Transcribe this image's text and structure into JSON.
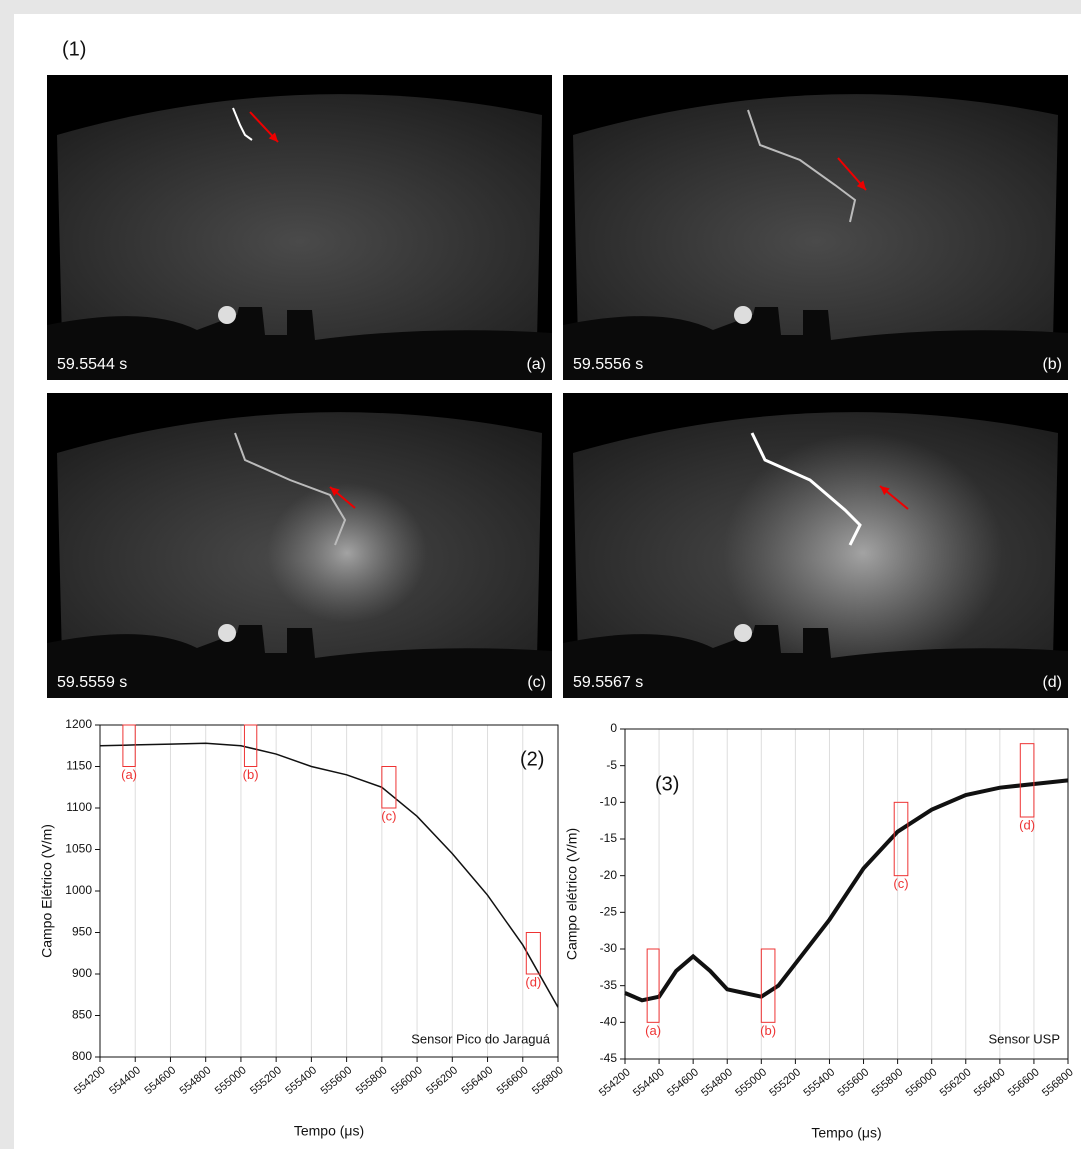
{
  "panel_label": "(1)",
  "photos": [
    {
      "time": "59.5544 s",
      "label": "(a)"
    },
    {
      "time": "59.5556 s",
      "label": "(b)"
    },
    {
      "time": "59.5559 s",
      "label": "(c)"
    },
    {
      "time": "59.5567 s",
      "label": "(d)"
    }
  ],
  "chart_data": [
    {
      "type": "line",
      "title": "(2)",
      "note": "Sensor Pico do Jaraguá",
      "xlabel": "Tempo (μs)",
      "ylabel": "Campo Elétrico (V/m)",
      "x": [
        554200,
        554400,
        554600,
        554800,
        555000,
        555200,
        555400,
        555600,
        555800,
        556000,
        556200,
        556400,
        556600,
        556800
      ],
      "series": [
        {
          "name": "Sensor Pico do Jaraguá",
          "color": "#111111",
          "values": [
            1175,
            1176,
            1177,
            1178,
            1175,
            1165,
            1150,
            1140,
            1125,
            1090,
            1045,
            995,
            935,
            860
          ]
        }
      ],
      "xlim": [
        554200,
        556800
      ],
      "xticks": [
        554200,
        554400,
        554600,
        554800,
        555000,
        555200,
        555400,
        555600,
        555800,
        556000,
        556200,
        556400,
        556600,
        556800
      ],
      "ylim": [
        800,
        1200
      ],
      "yticks": [
        800,
        850,
        900,
        950,
        1000,
        1050,
        1100,
        1150,
        1200
      ],
      "grid": true,
      "annotations": [
        {
          "label": "(a)",
          "x": [
            554330,
            554400
          ],
          "y": [
            1150,
            1200
          ]
        },
        {
          "label": "(b)",
          "x": [
            555020,
            555090
          ],
          "y": [
            1150,
            1200
          ]
        },
        {
          "label": "(c)",
          "x": [
            555800,
            555880
          ],
          "y": [
            1100,
            1150
          ]
        },
        {
          "label": "(d)",
          "x": [
            556620,
            556700
          ],
          "y": [
            900,
            950
          ]
        }
      ]
    },
    {
      "type": "line",
      "title": "(3)",
      "note": "Sensor USP",
      "xlabel": "Tempo (μs)",
      "ylabel": "Campo elétrico (V/m)",
      "x": [
        554200,
        554300,
        554400,
        554500,
        554600,
        554700,
        554800,
        554900,
        555000,
        555100,
        555200,
        555400,
        555600,
        555800,
        556000,
        556200,
        556400,
        556600,
        556800
      ],
      "series": [
        {
          "name": "Sensor USP",
          "color": "#111111",
          "values": [
            -36,
            -37,
            -36.5,
            -33,
            -31,
            -33,
            -35.5,
            -36,
            -36.5,
            -35,
            -32,
            -26,
            -19,
            -14,
            -11,
            -9,
            -8,
            -7.5,
            -7
          ]
        }
      ],
      "xlim": [
        554200,
        556800
      ],
      "xticks": [
        554200,
        554400,
        554600,
        554800,
        555000,
        555200,
        555400,
        555600,
        555800,
        556000,
        556200,
        556400,
        556600,
        556800
      ],
      "ylim": [
        -45,
        0
      ],
      "yticks": [
        -45,
        -40,
        -35,
        -30,
        -25,
        -20,
        -15,
        -10,
        -5,
        0
      ],
      "grid": true,
      "annotations": [
        {
          "label": "(a)",
          "x": [
            554330,
            554400
          ],
          "y": [
            -40,
            -30
          ]
        },
        {
          "label": "(b)",
          "x": [
            555000,
            555080
          ],
          "y": [
            -40,
            -30
          ]
        },
        {
          "label": "(c)",
          "x": [
            555780,
            555860
          ],
          "y": [
            -20,
            -10
          ]
        },
        {
          "label": "(d)",
          "x": [
            556520,
            556600
          ],
          "y": [
            -12,
            -2
          ]
        }
      ]
    }
  ]
}
